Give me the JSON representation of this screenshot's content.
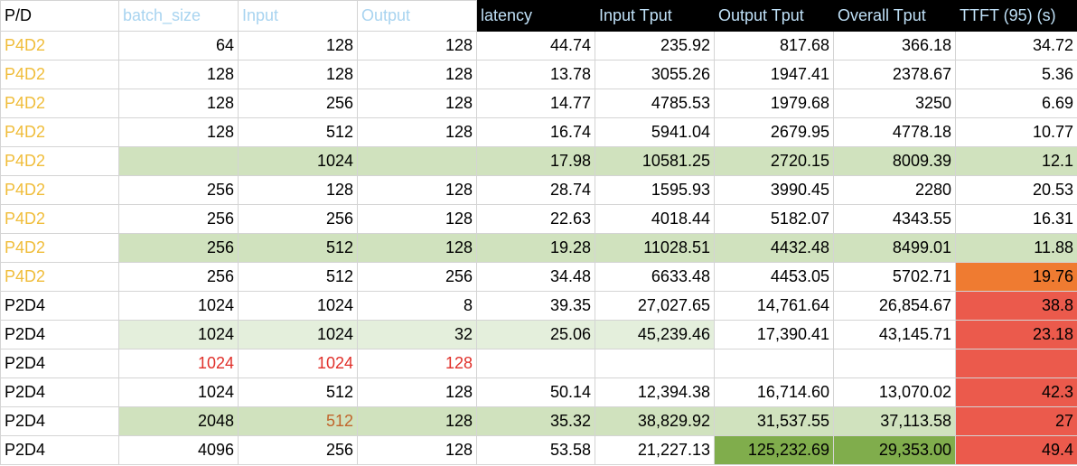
{
  "table": {
    "header": [
      "P/D",
      "batch_size",
      "Input",
      "Output",
      "latency",
      "Input Tput",
      "Output Tput",
      "Overall Tput",
      "TTFT (95) (s)"
    ],
    "rows": [
      [
        "P4D2",
        "64",
        "128",
        "128",
        "44.74",
        "235.92",
        "817.68",
        "366.18",
        "34.72"
      ],
      [
        "P4D2",
        "128",
        "128",
        "128",
        "13.78",
        "3055.26",
        "1947.41",
        "2378.67",
        "5.36"
      ],
      [
        "P4D2",
        "128",
        "256",
        "128",
        "14.77",
        "4785.53",
        "1979.68",
        "3250",
        "6.69"
      ],
      [
        "P4D2",
        "128",
        "512",
        "128",
        "16.74",
        "5941.04",
        "2679.95",
        "4778.18",
        "10.77"
      ],
      [
        "P4D2",
        null,
        "1024",
        null,
        "17.98",
        "10581.25",
        "2720.15",
        "8009.39",
        "12.1"
      ],
      [
        "P4D2",
        "256",
        "128",
        "128",
        "28.74",
        "1595.93",
        "3990.45",
        "2280",
        "20.53"
      ],
      [
        "P4D2",
        "256",
        "256",
        "128",
        "22.63",
        "4018.44",
        "5182.07",
        "4343.55",
        "16.31"
      ],
      [
        "P4D2",
        "256",
        "512",
        "128",
        "19.28",
        "11028.51",
        "4432.48",
        "8499.01",
        "11.88"
      ],
      [
        "P4D2",
        "256",
        "512",
        "256",
        "34.48",
        "6633.48",
        "4453.05",
        "5702.71",
        "19.76"
      ],
      [
        "P2D4",
        "1024",
        "1024",
        "8",
        "39.35",
        "27,027.65",
        "14,761.64",
        "26,854.67",
        "38.8"
      ],
      [
        "P2D4",
        "1024",
        "1024",
        "32",
        "25.06",
        "45,239.46",
        "17,390.41",
        "43,145.71",
        "23.18"
      ],
      [
        "P2D4",
        "1024",
        "1024",
        "128",
        null,
        null,
        null,
        null,
        null
      ],
      [
        "P2D4",
        "1024",
        "512",
        "128",
        "50.14",
        "12,394.38",
        "16,714.60",
        "13,070.02",
        "42.3"
      ],
      [
        "P2D4",
        "2048",
        "512",
        "128",
        "35.32",
        "38,829.92",
        "31,537.55",
        "37,113.58",
        "27"
      ],
      [
        "P2D4",
        "4096",
        "256",
        "128",
        "53.58",
        "21,227.13",
        "125,232.69",
        "29,353.00",
        "49.4"
      ]
    ]
  }
}
